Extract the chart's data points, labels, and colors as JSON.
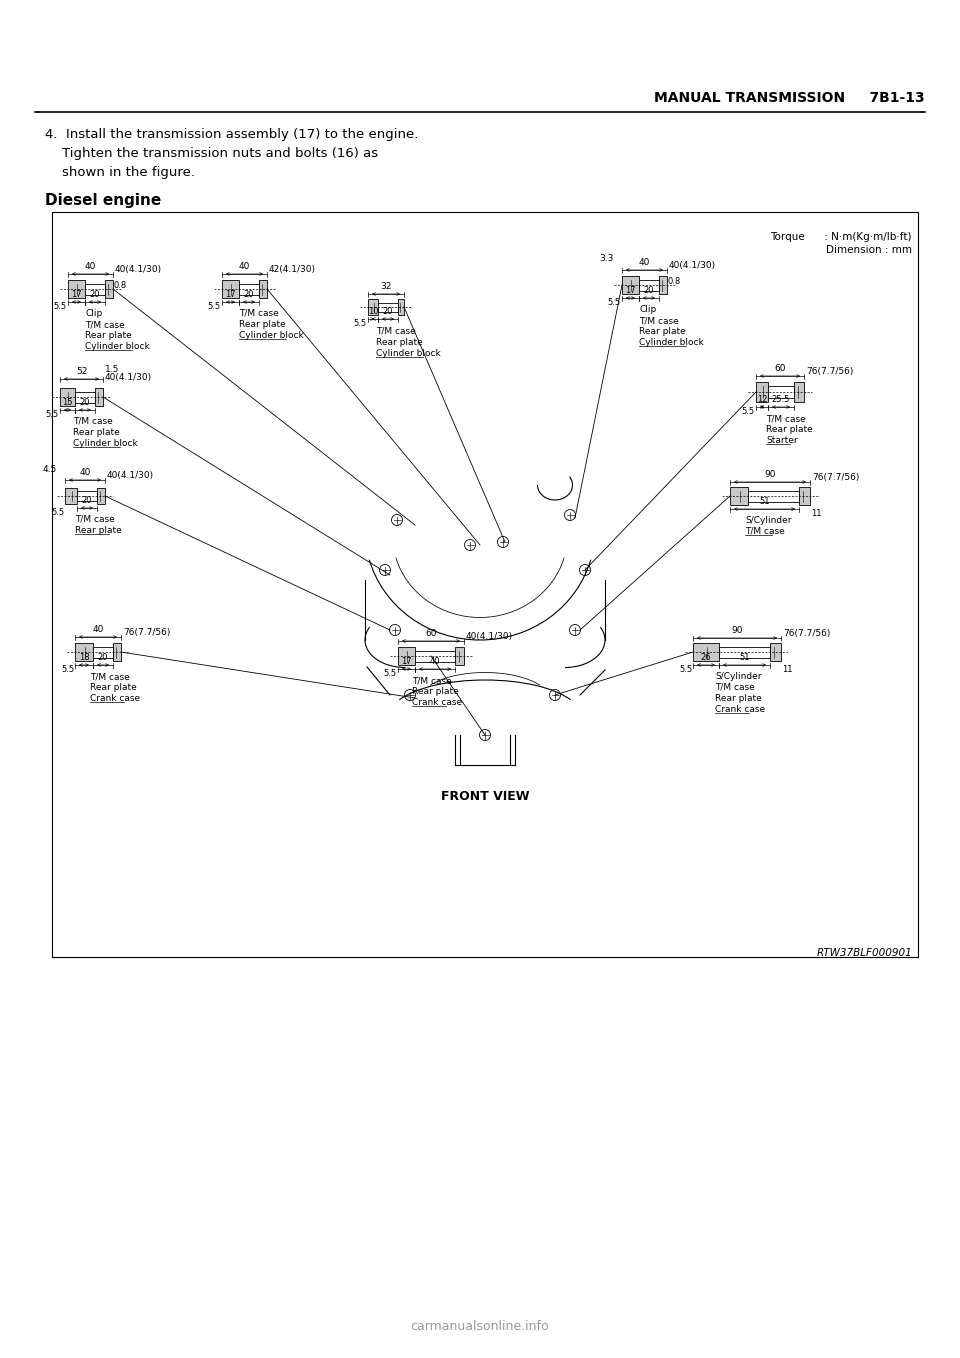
{
  "page_bg": "#ffffff",
  "header_text": "MANUAL TRANSMISSION     7B1-13",
  "body_line1": "4.  Install the transmission assembly (17) to the engine.",
  "body_line2": "    Tighten the transmission nuts and bolts (16) as",
  "body_line3": "    shown in the figure.",
  "section_title": "Diesel engine",
  "footer_ref": "RTW37BLF000901",
  "watermark": "carmanualsonline.info",
  "torque_label": "Torque      : N·m(Kg·m/lb·ft)",
  "dimension_label": "Dimension : mm",
  "front_view_label": "FRONT VIEW"
}
